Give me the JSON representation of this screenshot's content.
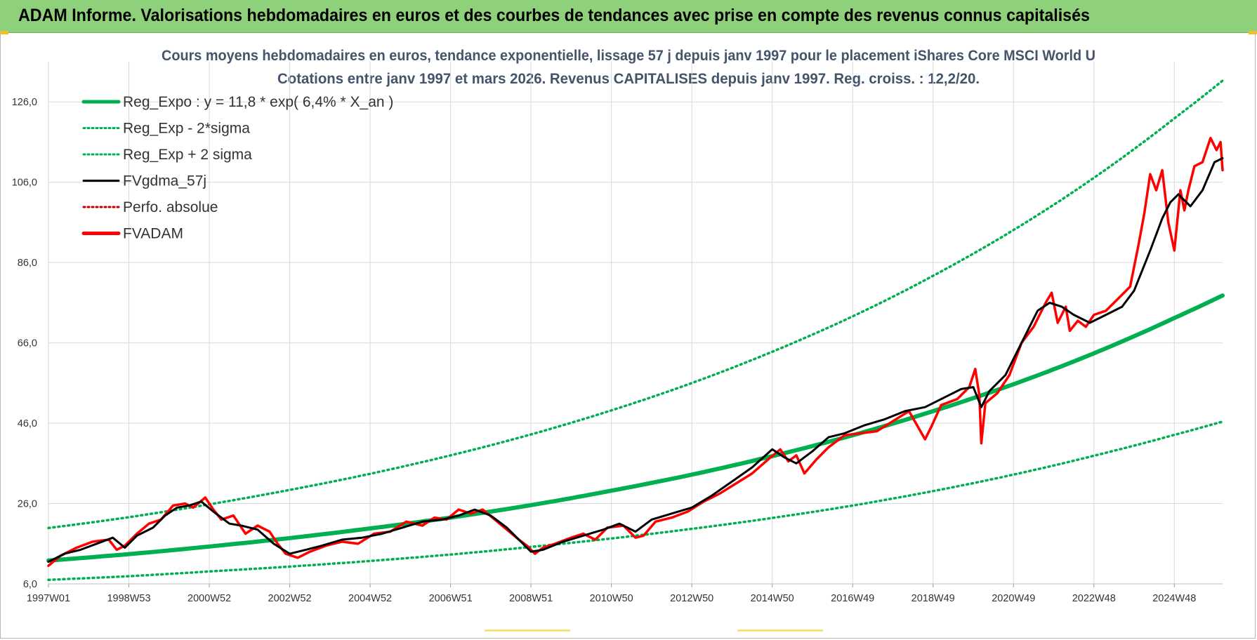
{
  "header": {
    "title": "ADAM Informe. Valorisations hebdomadaires en euros et des courbes de tendances avec prise en compte des revenus connus capitalisés"
  },
  "colors": {
    "header_bg": "#8fd07a",
    "title_text": "#44546a",
    "reg_expo": "#00b050",
    "fvgdma": "#000000",
    "fvadam": "#ff0000",
    "perfo": "#c00000",
    "grid": "#d9d9d9"
  },
  "chart_data": {
    "type": "line",
    "title_lines": [
      "Cours moyens hebdomadaires en euros, tendance exponentielle, lissage 57 j depuis janv 1997 pour le placement iShares Core MSCI World U",
      "Cotations entre janv 1997 et mars 2026. Revenus CAPITALISES depuis janv 1997. Reg. croiss. : 12,2/20."
    ],
    "xlabel": "",
    "ylabel": "",
    "x_range": [
      1997.0,
      2026.2
    ],
    "ylim": [
      6.0,
      136.0
    ],
    "y_ticks": [
      "6,0",
      "26,0",
      "46,0",
      "66,0",
      "86,0",
      "106,0",
      "126,0"
    ],
    "y_tick_values": [
      6,
      26,
      46,
      66,
      86,
      106,
      126
    ],
    "x_ticks": [
      "1997W01",
      "1998W53",
      "2000W52",
      "2002W52",
      "2004W52",
      "2006W51",
      "2008W51",
      "2010W50",
      "2012W50",
      "2014W50",
      "2016W49",
      "2018W49",
      "2020W49",
      "2022W48",
      "2024W48"
    ],
    "x_tick_years": [
      1997.0,
      1999.0,
      2001.0,
      2003.0,
      2005.0,
      2007.0,
      2009.0,
      2011.0,
      2013.0,
      2015.0,
      2017.0,
      2019.0,
      2021.0,
      2023.0,
      2025.0
    ],
    "grid": true,
    "legend_position": "top-left",
    "legend": [
      {
        "label": "Reg_Expo : y = 11,8 * exp( 6,4% *  X_an )",
        "style": "thick",
        "color": "#00b050"
      },
      {
        "label": "Reg_Exp - 2*sigma",
        "style": "dotted",
        "color": "#00b050"
      },
      {
        "label": "Reg_Exp + 2 sigma",
        "style": "dotted",
        "color": "#00b050"
      },
      {
        "label": "FVgdma_57j",
        "style": "solid",
        "color": "#000000"
      },
      {
        "label": "Perfo. absolue",
        "style": "dotted",
        "color": "#c00000"
      },
      {
        "label": "FVADAM",
        "style": "thick",
        "color": "#ff0000"
      }
    ],
    "series": [
      {
        "name": "Reg_Expo : y = 11,8 * exp( 6,4% *  X_an )",
        "x": [
          1997,
          1999,
          2001,
          2003,
          2005,
          2007,
          2009,
          2011,
          2013,
          2015,
          2017,
          2019,
          2021,
          2023,
          2025,
          2026.2
        ],
        "values": [
          11.8,
          13.4,
          15.3,
          17.4,
          19.8,
          22.5,
          25.6,
          29.2,
          33.2,
          37.8,
          43.0,
          49.0,
          55.7,
          63.4,
          72.2,
          77.8
        ]
      },
      {
        "name": "Reg_Exp - 2*sigma",
        "x": [
          1997,
          1999,
          2001,
          2003,
          2005,
          2007,
          2009,
          2011,
          2013,
          2015,
          2017,
          2019,
          2021,
          2023,
          2025,
          2026.2
        ],
        "values": [
          7.0,
          7.9,
          9.1,
          10.3,
          11.7,
          13.3,
          15.2,
          17.3,
          19.7,
          22.4,
          25.5,
          29.1,
          33.2,
          37.9,
          43.1,
          46.4
        ]
      },
      {
        "name": "Reg_Exp + 2 sigma",
        "x": [
          1997,
          1999,
          2001,
          2003,
          2005,
          2007,
          2009,
          2011,
          2013,
          2015,
          2017,
          2019,
          2021,
          2023,
          2025,
          2026.2
        ],
        "values": [
          19.9,
          22.6,
          25.8,
          29.4,
          33.4,
          38.0,
          43.2,
          49.2,
          56.0,
          63.8,
          72.6,
          82.7,
          94.1,
          107.1,
          121.9,
          131.3
        ]
      },
      {
        "name": "FVgdma_57j",
        "x": [
          1997.0,
          1997.4,
          1997.8,
          1998.2,
          1998.6,
          1998.9,
          1999.2,
          1999.6,
          1999.9,
          2000.2,
          2000.5,
          2000.8,
          2001.1,
          2001.5,
          2001.8,
          2002.2,
          2002.6,
          2003.0,
          2003.4,
          2003.8,
          2004.3,
          2004.8,
          2005.3,
          2005.8,
          2006.3,
          2006.8,
          2007.2,
          2007.6,
          2008.0,
          2008.4,
          2008.7,
          2009.0,
          2009.3,
          2009.8,
          2010.3,
          2010.8,
          2011.2,
          2011.6,
          2012.0,
          2012.5,
          2013.0,
          2013.5,
          2014.0,
          2014.5,
          2015.0,
          2015.3,
          2015.6,
          2016.0,
          2016.4,
          2016.8,
          2017.3,
          2017.8,
          2018.3,
          2018.8,
          2019.2,
          2019.7,
          2020.0,
          2020.2,
          2020.4,
          2020.8,
          2021.2,
          2021.6,
          2021.9,
          2022.2,
          2022.5,
          2022.9,
          2023.3,
          2023.7,
          2024.0,
          2024.4,
          2024.7,
          2024.9,
          2025.1,
          2025.4,
          2025.7,
          2026.0,
          2026.2
        ],
        "values": [
          11.5,
          13.5,
          14.5,
          16.0,
          17.5,
          15.0,
          18.0,
          20.0,
          23.0,
          25.0,
          25.5,
          26.5,
          24.0,
          21.0,
          20.5,
          19.5,
          16.0,
          13.5,
          14.5,
          15.5,
          17.0,
          17.5,
          18.5,
          20.0,
          21.5,
          22.0,
          23.0,
          24.5,
          23.0,
          20.0,
          17.0,
          14.0,
          14.5,
          16.5,
          18.0,
          19.5,
          21.0,
          19.0,
          22.0,
          23.5,
          25.0,
          28.0,
          31.5,
          35.0,
          39.5,
          37.5,
          36.0,
          39.0,
          42.5,
          43.5,
          45.5,
          47.0,
          49.0,
          50.0,
          52.0,
          54.5,
          55.0,
          50.0,
          54.0,
          58.0,
          66.0,
          74.0,
          76.0,
          75.0,
          73.0,
          71.0,
          73.0,
          75.0,
          79.0,
          89.0,
          97.0,
          101.0,
          103.0,
          100.0,
          104.0,
          111.0,
          112.0
        ]
      },
      {
        "name": "Perfo. absolue",
        "x": [],
        "values": []
      },
      {
        "name": "FVADAM",
        "x": [
          1997.0,
          1997.3,
          1997.7,
          1998.1,
          1998.5,
          1998.7,
          1998.9,
          1999.2,
          1999.5,
          1999.8,
          2000.1,
          2000.4,
          2000.6,
          2000.9,
          2001.1,
          2001.3,
          2001.6,
          2001.9,
          2002.2,
          2002.5,
          2002.7,
          2002.9,
          2003.2,
          2003.5,
          2003.9,
          2004.3,
          2004.7,
          2005.1,
          2005.5,
          2005.9,
          2006.3,
          2006.6,
          2006.9,
          2007.2,
          2007.5,
          2007.8,
          2008.1,
          2008.4,
          2008.7,
          2008.9,
          2009.1,
          2009.3,
          2009.6,
          2010.0,
          2010.3,
          2010.6,
          2010.9,
          2011.3,
          2011.6,
          2011.8,
          2012.1,
          2012.5,
          2012.9,
          2013.3,
          2013.7,
          2014.1,
          2014.5,
          2014.9,
          2015.2,
          2015.4,
          2015.6,
          2015.8,
          2016.1,
          2016.4,
          2016.8,
          2017.2,
          2017.6,
          2018.0,
          2018.4,
          2018.8,
          2018.95,
          2019.2,
          2019.6,
          2019.9,
          2020.05,
          2020.15,
          2020.2,
          2020.3,
          2020.6,
          2020.9,
          2021.2,
          2021.5,
          2021.8,
          2021.95,
          2022.1,
          2022.3,
          2022.4,
          2022.6,
          2022.8,
          2023.0,
          2023.3,
          2023.6,
          2023.9,
          2024.1,
          2024.25,
          2024.4,
          2024.55,
          2024.7,
          2024.85,
          2025.0,
          2025.15,
          2025.25,
          2025.35,
          2025.5,
          2025.7,
          2025.9,
          2026.05,
          2026.15,
          2026.2
        ],
        "values": [
          10.5,
          13.0,
          15.0,
          16.5,
          17.0,
          14.5,
          15.5,
          18.5,
          21.0,
          22.0,
          25.5,
          26.0,
          25.0,
          27.5,
          24.5,
          22.0,
          23.0,
          18.5,
          20.5,
          19.0,
          16.0,
          13.5,
          12.5,
          14.0,
          15.5,
          16.5,
          16.0,
          18.5,
          19.0,
          21.5,
          20.5,
          22.5,
          22.0,
          24.5,
          23.5,
          24.5,
          22.0,
          19.5,
          17.0,
          15.5,
          13.5,
          15.0,
          16.0,
          17.5,
          18.5,
          17.0,
          20.0,
          20.5,
          17.5,
          18.0,
          21.5,
          22.5,
          24.0,
          26.5,
          28.5,
          31.0,
          33.5,
          37.0,
          39.5,
          36.5,
          38.0,
          33.5,
          37.0,
          40.0,
          43.0,
          43.5,
          44.0,
          46.5,
          49.0,
          42.0,
          45.0,
          50.5,
          52.0,
          55.0,
          59.5,
          53.0,
          41.0,
          51.0,
          53.5,
          58.0,
          66.0,
          70.0,
          76.0,
          78.5,
          71.0,
          75.0,
          69.0,
          71.5,
          70.0,
          73.0,
          74.0,
          77.0,
          80.0,
          90.0,
          98.0,
          108.0,
          104.0,
          109.0,
          96.0,
          89.0,
          104.0,
          99.0,
          104.0,
          110.0,
          111.0,
          117.0,
          114.0,
          116.0,
          109.0
        ]
      }
    ]
  }
}
